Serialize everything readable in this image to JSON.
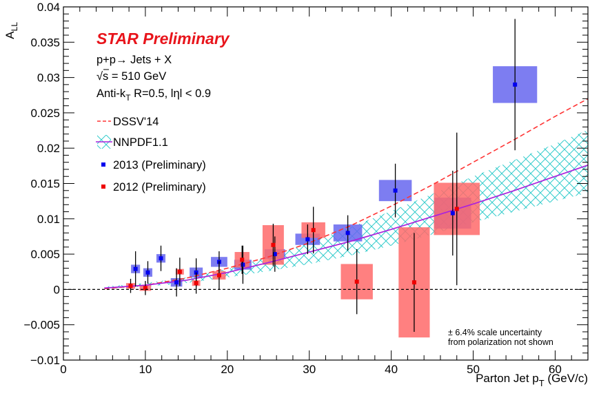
{
  "chart_data": {
    "type": "scatter",
    "ylabel_main": "A",
    "ylabel_sub": "LL",
    "xlabel_main": "Parton Jet p",
    "xlabel_sub": "T",
    "xlabel_unit": " (GeV/c)",
    "xlim": [
      0,
      64
    ],
    "ylim": [
      -0.01,
      0.04
    ],
    "xticks": [
      0,
      10,
      20,
      30,
      40,
      50,
      60
    ],
    "xtick_labels": [
      "0",
      "10",
      "20",
      "30",
      "40",
      "50",
      "60"
    ],
    "yticks": [
      -0.01,
      -0.005,
      0,
      0.005,
      0.01,
      0.015,
      0.02,
      0.025,
      0.03,
      0.035,
      0.04
    ],
    "ytick_labels": [
      "−0.01",
      "−0.005",
      "0",
      "0.005",
      "0.01",
      "0.015",
      "0.02",
      "0.025",
      "0.03",
      "0.035",
      "0.04"
    ],
    "zero_line": true,
    "annotations": {
      "preliminary": "STAR Preliminary",
      "process": "p+p→ Jets + X",
      "energy": "√s = 510 GeV",
      "jet_def_main": "Anti-k",
      "jet_def_sub": "T",
      "jet_def_rest": " R=0.5, lηl < 0.9",
      "scale_note_1": "± 6.4% scale uncertainty",
      "scale_note_2": "from polarization not shown"
    },
    "legend": {
      "placement": "top-left",
      "entries": [
        "DSSV'14",
        "NNPDF1.1",
        "2013 (Preliminary)",
        "2012 (Preliminary)"
      ]
    },
    "colors": {
      "dssv": "#ff3333",
      "nnpdf_band": "#33cccc",
      "nnpdf_line": "#aa22dd",
      "star2013_marker": "#0000ee",
      "star2013_box": "#6666ee",
      "star2012_marker": "#ee0000",
      "star2012_box": "#ff6a6a"
    },
    "series": [
      {
        "name": "2013 (Preliminary)",
        "points": [
          {
            "x": 8.8,
            "y": 0.0029,
            "err": 0.0025,
            "sys": 0.0006,
            "xw": 1.1
          },
          {
            "x": 10.3,
            "y": 0.0024,
            "err": 0.0016,
            "sys": 0.0006,
            "xw": 1.1
          },
          {
            "x": 11.9,
            "y": 0.0044,
            "err": 0.0018,
            "sys": 0.0006,
            "xw": 1.1
          },
          {
            "x": 13.8,
            "y": 0.001,
            "err": 0.002,
            "sys": 0.0006,
            "xw": 1.4
          },
          {
            "x": 16.2,
            "y": 0.0024,
            "err": 0.002,
            "sys": 0.0007,
            "xw": 1.6
          },
          {
            "x": 19.0,
            "y": 0.0039,
            "err": 0.0015,
            "sys": 0.0007,
            "xw": 2.0
          },
          {
            "x": 21.9,
            "y": 0.0035,
            "err": 0.0027,
            "sys": 0.0007,
            "xw": 2.1
          },
          {
            "x": 25.8,
            "y": 0.005,
            "err": 0.0025,
            "sys": 0.0007,
            "xw": 2.5
          },
          {
            "x": 29.8,
            "y": 0.0071,
            "err": 0.0021,
            "sys": 0.0008,
            "xw": 3.0
          },
          {
            "x": 34.7,
            "y": 0.008,
            "err": 0.0025,
            "sys": 0.0012,
            "xw": 3.5
          },
          {
            "x": 40.5,
            "y": 0.014,
            "err": 0.0038,
            "sys": 0.0015,
            "xw": 4.0
          },
          {
            "x": 47.5,
            "y": 0.0108,
            "err": 0.006,
            "sys": 0.0022,
            "xw": 4.5
          },
          {
            "x": 55.1,
            "y": 0.029,
            "err": 0.0093,
            "sys": 0.0026,
            "xw": 5.4
          }
        ]
      },
      {
        "name": "2012 (Preliminary)",
        "points": [
          {
            "x": 8.2,
            "y": 0.0005,
            "err": 0.001,
            "sys": 0.0004,
            "xw": 1.1
          },
          {
            "x": 10.0,
            "y": 0.0002,
            "err": 0.001,
            "sys": 0.0004,
            "xw": 1.4
          },
          {
            "x": 14.2,
            "y": 0.0025,
            "err": 0.002,
            "sys": 0.0004,
            "xw": 1.0
          },
          {
            "x": 16.2,
            "y": 0.0009,
            "err": 0.0015,
            "sys": 0.0004,
            "xw": 1.0
          },
          {
            "x": 19.0,
            "y": 0.002,
            "err": 0.002,
            "sys": 0.0006,
            "xw": 1.6
          },
          {
            "x": 21.8,
            "y": 0.0042,
            "err": 0.002,
            "sys": 0.0011,
            "xw": 1.8
          },
          {
            "x": 25.6,
            "y": 0.0063,
            "err": 0.003,
            "sys": 0.0028,
            "xw": 2.6
          },
          {
            "x": 30.5,
            "y": 0.0084,
            "err": 0.0033,
            "sys": 0.0011,
            "xw": 2.9
          },
          {
            "x": 35.8,
            "y": 0.0011,
            "err": 0.0046,
            "sys": 0.0025,
            "xw": 3.9
          },
          {
            "x": 42.8,
            "y": 0.001,
            "err": 0.007,
            "sys": 0.0078,
            "xw": 3.8
          },
          {
            "x": 48.0,
            "y": 0.0114,
            "err": 0.0108,
            "sys": 0.0037,
            "xw": 5.6
          }
        ]
      }
    ],
    "theory": {
      "dssv": {
        "name": "DSSV'14",
        "x": [
          5,
          10,
          15,
          20,
          25,
          30,
          35,
          40,
          45,
          50,
          55,
          60,
          64
        ],
        "y": [
          0.0001,
          0.0006,
          0.0016,
          0.003,
          0.0046,
          0.0066,
          0.009,
          0.0118,
          0.0148,
          0.018,
          0.0212,
          0.0245,
          0.027
        ]
      },
      "nnpdf": {
        "name": "NNPDF1.1",
        "x": [
          5,
          10,
          15,
          20,
          25,
          30,
          35,
          40,
          45,
          50,
          55,
          60,
          64
        ],
        "y": [
          0.0002,
          0.0006,
          0.0013,
          0.0024,
          0.0038,
          0.0053,
          0.0068,
          0.0085,
          0.0103,
          0.0121,
          0.014,
          0.016,
          0.0176
        ],
        "band_low": [
          0.0001,
          0.0004,
          0.0009,
          0.0017,
          0.0026,
          0.0036,
          0.0048,
          0.0062,
          0.0078,
          0.0095,
          0.011,
          0.0125,
          0.0137
        ],
        "band_high": [
          0.0004,
          0.0009,
          0.0017,
          0.0029,
          0.0046,
          0.0066,
          0.0088,
          0.0111,
          0.0135,
          0.016,
          0.0183,
          0.0206,
          0.0226
        ]
      }
    }
  }
}
